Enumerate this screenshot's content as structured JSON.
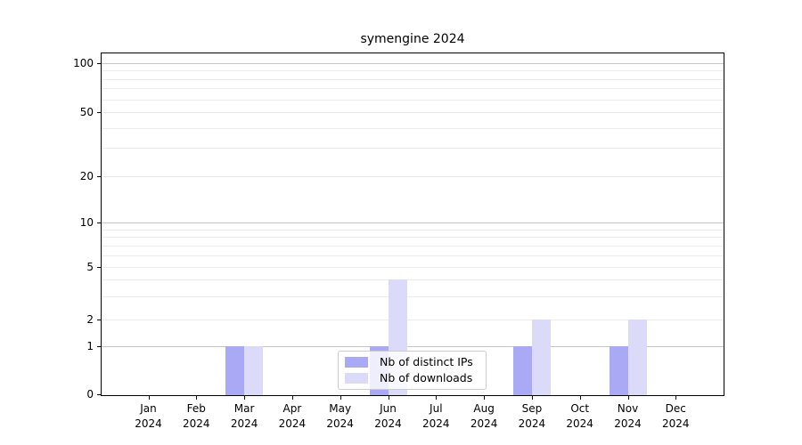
{
  "chart_data": {
    "type": "bar",
    "title": "symengine 2024",
    "categories": [
      "Jan 2024",
      "Feb 2024",
      "Mar 2024",
      "Apr 2024",
      "May 2024",
      "Jun 2024",
      "Jul 2024",
      "Aug 2024",
      "Sep 2024",
      "Oct 2024",
      "Nov 2024",
      "Dec 2024"
    ],
    "series": [
      {
        "name": "Nb of distinct IPs",
        "color": "#a9a9f5",
        "values": [
          0,
          0,
          1,
          0,
          0,
          1,
          0,
          0,
          1,
          0,
          1,
          0
        ]
      },
      {
        "name": "Nb of downloads",
        "color": "#dbdbf9",
        "values": [
          0,
          0,
          1,
          0,
          0,
          4,
          0,
          0,
          2,
          0,
          2,
          0
        ]
      }
    ],
    "xlabel": "",
    "ylabel": "",
    "yscale": "symlog",
    "ylim": [
      0,
      100
    ],
    "ytick_labels": [
      "0",
      "1",
      "2",
      "5",
      "10",
      "20",
      "50",
      "100"
    ],
    "grid": "horizontal",
    "legend_position": "lower center",
    "colors": {
      "major_gridline": "#c6c6c6",
      "minor_gridline": "#ececec",
      "axis_frame": "#000000",
      "background": "#ffffff"
    }
  }
}
